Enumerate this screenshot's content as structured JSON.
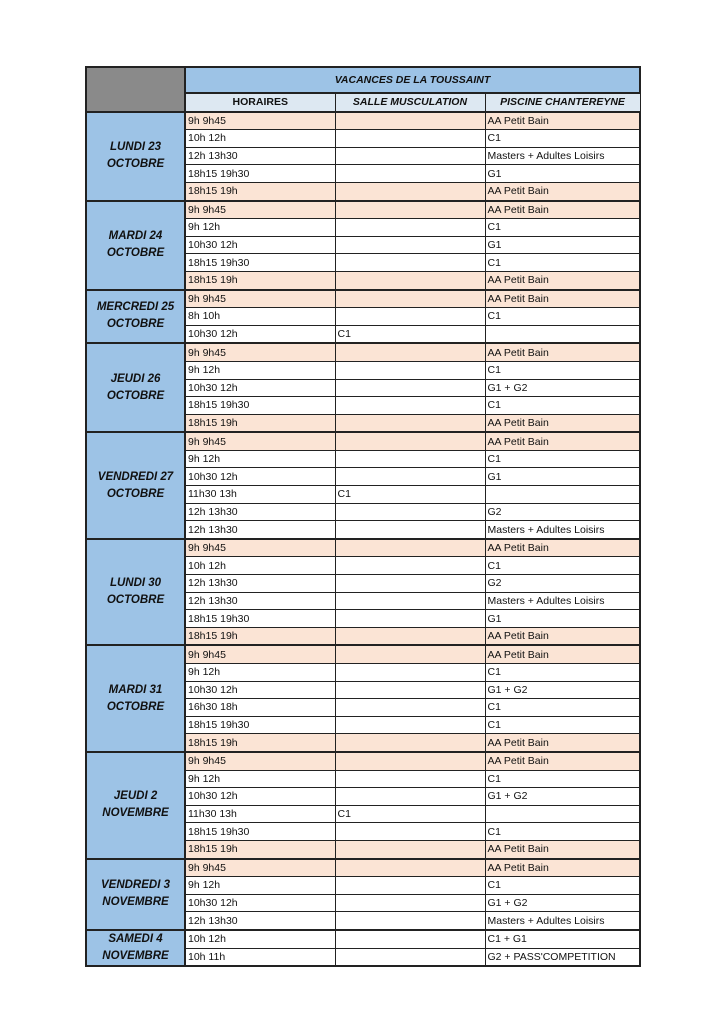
{
  "title": "VACANCES DE LA TOUSSAINT",
  "headers": [
    "HORAIRES",
    "SALLE MUSCULATION",
    "PISCINE CHANTEREYNE"
  ],
  "colors": {
    "day_bg": "#9dc3e6",
    "highlight": "#fbe4d5",
    "corner": "#8a8a8a"
  },
  "days": [
    {
      "label": [
        "LUNDI 23",
        "OCTOBRE"
      ],
      "rows": [
        {
          "time": "9h 9h45",
          "salle": "",
          "piscine": "AA Petit Bain",
          "hl": true
        },
        {
          "time": "10h 12h",
          "salle": "",
          "piscine": "C1"
        },
        {
          "time": "12h 13h30",
          "salle": "",
          "piscine": "Masters + Adultes Loisirs"
        },
        {
          "time": "18h15 19h30",
          "salle": "",
          "piscine": "G1"
        },
        {
          "time": "18h15 19h",
          "salle": "",
          "piscine": "AA Petit Bain",
          "hl": true
        }
      ]
    },
    {
      "label": [
        "MARDI 24",
        "OCTOBRE"
      ],
      "rows": [
        {
          "time": "9h 9h45",
          "salle": "",
          "piscine": "AA Petit Bain",
          "hl": true
        },
        {
          "time": "9h 12h",
          "salle": "",
          "piscine": "C1"
        },
        {
          "time": "10h30 12h",
          "salle": "",
          "piscine": "G1"
        },
        {
          "time": "18h15 19h30",
          "salle": "",
          "piscine": "C1"
        },
        {
          "time": "18h15 19h",
          "salle": "",
          "piscine": "AA Petit Bain",
          "hl": true
        }
      ]
    },
    {
      "label": [
        "MERCREDI 25",
        "OCTOBRE"
      ],
      "rows": [
        {
          "time": "9h 9h45",
          "salle": "",
          "piscine": "AA Petit Bain",
          "hl": true
        },
        {
          "time": "8h 10h",
          "salle": "",
          "piscine": "C1"
        },
        {
          "time": "10h30 12h",
          "salle": "C1",
          "piscine": ""
        }
      ]
    },
    {
      "label": [
        "JEUDI 26",
        "OCTOBRE"
      ],
      "rows": [
        {
          "time": "9h 9h45",
          "salle": "",
          "piscine": "AA Petit Bain",
          "hl": true
        },
        {
          "time": "9h 12h",
          "salle": "",
          "piscine": "C1"
        },
        {
          "time": "10h30 12h",
          "salle": "",
          "piscine": "G1 + G2"
        },
        {
          "time": "18h15 19h30",
          "salle": "",
          "piscine": "C1"
        },
        {
          "time": "18h15 19h",
          "salle": "",
          "piscine": "AA Petit Bain",
          "hl": true
        }
      ]
    },
    {
      "label": [
        "VENDREDI 27",
        "OCTOBRE"
      ],
      "rows": [
        {
          "time": "9h 9h45",
          "salle": "",
          "piscine": "AA Petit Bain",
          "hl": true
        },
        {
          "time": "9h 12h",
          "salle": "",
          "piscine": "C1"
        },
        {
          "time": "10h30 12h",
          "salle": "",
          "piscine": "G1"
        },
        {
          "time": "11h30 13h",
          "salle": "C1",
          "piscine": ""
        },
        {
          "time": "12h 13h30",
          "salle": "",
          "piscine": "G2"
        },
        {
          "time": "12h 13h30",
          "salle": "",
          "piscine": "Masters + Adultes Loisirs"
        }
      ]
    },
    {
      "label": [
        "LUNDI 30",
        "OCTOBRE"
      ],
      "rows": [
        {
          "time": "9h 9h45",
          "salle": "",
          "piscine": "AA Petit Bain",
          "hl": true
        },
        {
          "time": "10h 12h",
          "salle": "",
          "piscine": "C1"
        },
        {
          "time": "12h 13h30",
          "salle": "",
          "piscine": "G2"
        },
        {
          "time": "12h 13h30",
          "salle": "",
          "piscine": "Masters + Adultes Loisirs"
        },
        {
          "time": "18h15 19h30",
          "salle": "",
          "piscine": "G1"
        },
        {
          "time": "18h15 19h",
          "salle": "",
          "piscine": "AA Petit Bain",
          "hl": true
        }
      ]
    },
    {
      "label": [
        "MARDI 31",
        "OCTOBRE"
      ],
      "rows": [
        {
          "time": "9h 9h45",
          "salle": "",
          "piscine": "AA Petit Bain",
          "hl": true
        },
        {
          "time": "9h 12h",
          "salle": "",
          "piscine": "C1"
        },
        {
          "time": "10h30 12h",
          "salle": "",
          "piscine": "G1 + G2"
        },
        {
          "time": "16h30 18h",
          "salle": "",
          "piscine": "C1"
        },
        {
          "time": "18h15 19h30",
          "salle": "",
          "piscine": "C1"
        },
        {
          "time": "18h15 19h",
          "salle": "",
          "piscine": "AA Petit Bain",
          "hl": true
        }
      ]
    },
    {
      "label": [
        "JEUDI 2",
        "NOVEMBRE"
      ],
      "rows": [
        {
          "time": "9h 9h45",
          "salle": "",
          "piscine": "AA Petit Bain",
          "hl": true
        },
        {
          "time": "9h 12h",
          "salle": "",
          "piscine": "C1"
        },
        {
          "time": "10h30 12h",
          "salle": "",
          "piscine": "G1 + G2"
        },
        {
          "time": "11h30 13h",
          "salle": "C1",
          "piscine": ""
        },
        {
          "time": "18h15 19h30",
          "salle": "",
          "piscine": "C1"
        },
        {
          "time": "18h15 19h",
          "salle": "",
          "piscine": "AA Petit Bain",
          "hl": true
        }
      ]
    },
    {
      "label": [
        "VENDREDI 3",
        "NOVEMBRE"
      ],
      "rows": [
        {
          "time": "9h 9h45",
          "salle": "",
          "piscine": "AA Petit Bain",
          "hl": true
        },
        {
          "time": "9h 12h",
          "salle": "",
          "piscine": "C1"
        },
        {
          "time": "10h30 12h",
          "salle": "",
          "piscine": "G1 + G2"
        },
        {
          "time": "12h 13h30",
          "salle": "",
          "piscine": "Masters + Adultes Loisirs"
        }
      ]
    },
    {
      "label": [
        "SAMEDI 4",
        "NOVEMBRE"
      ],
      "rows": [
        {
          "time": "10h 12h",
          "salle": "",
          "piscine": "C1 + G1"
        },
        {
          "time": "10h 11h",
          "salle": "",
          "piscine": "G2 + PASS'COMPETITION"
        }
      ]
    }
  ]
}
